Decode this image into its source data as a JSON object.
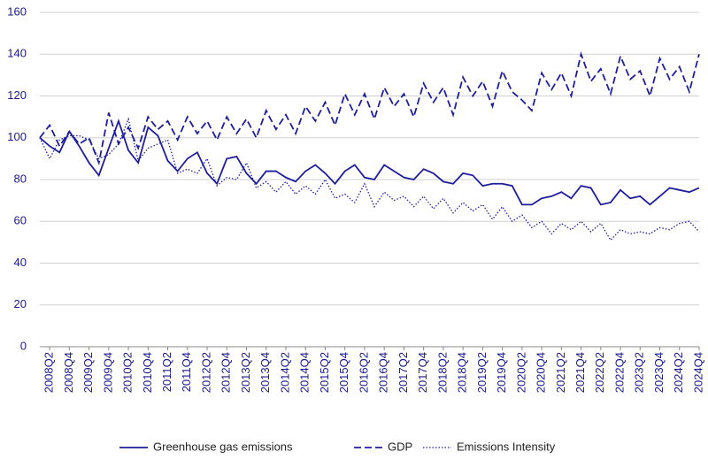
{
  "chart_data": {
    "type": "line",
    "categories": [
      null,
      "2008Q2",
      null,
      "2008Q4",
      null,
      "2009Q2",
      null,
      "2009Q4",
      null,
      "2010Q2",
      null,
      "2010Q4",
      null,
      "2011Q2",
      null,
      "2011Q4",
      null,
      "2012Q2",
      null,
      "2012Q4",
      null,
      "2013Q2",
      null,
      "2013Q4",
      null,
      "2014Q2",
      null,
      "2014Q4",
      null,
      "2015Q2",
      null,
      "2015Q4",
      null,
      "2016Q2",
      null,
      "2016Q4",
      null,
      "2017Q2",
      null,
      "2017Q4",
      null,
      "2018Q2",
      null,
      "2018Q4",
      null,
      "2019Q2",
      null,
      "2019Q4",
      null,
      "2020Q2",
      null,
      "2020Q4",
      null,
      "2021Q2",
      null,
      "2021Q4",
      null,
      "2022Q2",
      null,
      "2022Q4",
      null,
      "2023Q2",
      null,
      "2023Q4",
      null,
      "2024Q2",
      null,
      "2024Q4"
    ],
    "series": [
      {
        "name": "Greenhouse gas emissions",
        "color": "#1e1e9c",
        "dash": "solid",
        "values": [
          100,
          96,
          93,
          103,
          96,
          88,
          82,
          95,
          108,
          94,
          88,
          105,
          101,
          89,
          84,
          90,
          93,
          83,
          78,
          90,
          91,
          83,
          78,
          84,
          84,
          81,
          79,
          84,
          87,
          83,
          78,
          84,
          87,
          81,
          80,
          87,
          84,
          81,
          80,
          85,
          83,
          79,
          78,
          83,
          82,
          77,
          78,
          78,
          77,
          68,
          68,
          71,
          72,
          74,
          71,
          77,
          76,
          68,
          69,
          75,
          71,
          72,
          68,
          72,
          76,
          75,
          74,
          76
        ]
      },
      {
        "name": "GDP",
        "color": "#1e1e9c",
        "dash": "dashed",
        "values": [
          100,
          106,
          96,
          103,
          97,
          100,
          88,
          112,
          97,
          105,
          95,
          110,
          104,
          108,
          99,
          110,
          102,
          108,
          99,
          110,
          102,
          109,
          100,
          113,
          104,
          111,
          102,
          115,
          108,
          117,
          106,
          121,
          111,
          121,
          109,
          124,
          115,
          121,
          110,
          126,
          117,
          124,
          111,
          129,
          120,
          127,
          115,
          132,
          122,
          118,
          113,
          131,
          123,
          131,
          120,
          140,
          127,
          133,
          121,
          139,
          128,
          132,
          120,
          138,
          128,
          134,
          122,
          140
        ]
      },
      {
        "name": "Emissions Intensity",
        "color": "#1e1e9c",
        "dash": "dotted",
        "values": [
          100,
          90,
          99,
          101,
          101,
          99,
          90,
          92,
          97,
          109,
          89,
          95,
          97,
          99,
          83,
          85,
          83,
          90,
          77,
          81,
          80,
          88,
          76,
          79,
          74,
          79,
          73,
          77,
          73,
          80,
          71,
          73,
          69,
          78,
          67,
          74,
          70,
          72,
          67,
          72,
          66,
          71,
          64,
          69,
          65,
          68,
          61,
          67,
          60,
          63,
          57,
          60,
          54,
          59,
          56,
          60,
          55,
          59,
          51,
          56,
          54,
          55,
          54,
          57,
          56,
          59,
          60,
          55
        ]
      }
    ],
    "ylim": [
      0,
      160
    ],
    "yticks": [
      0,
      20,
      40,
      60,
      80,
      100,
      120,
      140,
      160
    ],
    "grid": true,
    "legend": "bottom"
  }
}
